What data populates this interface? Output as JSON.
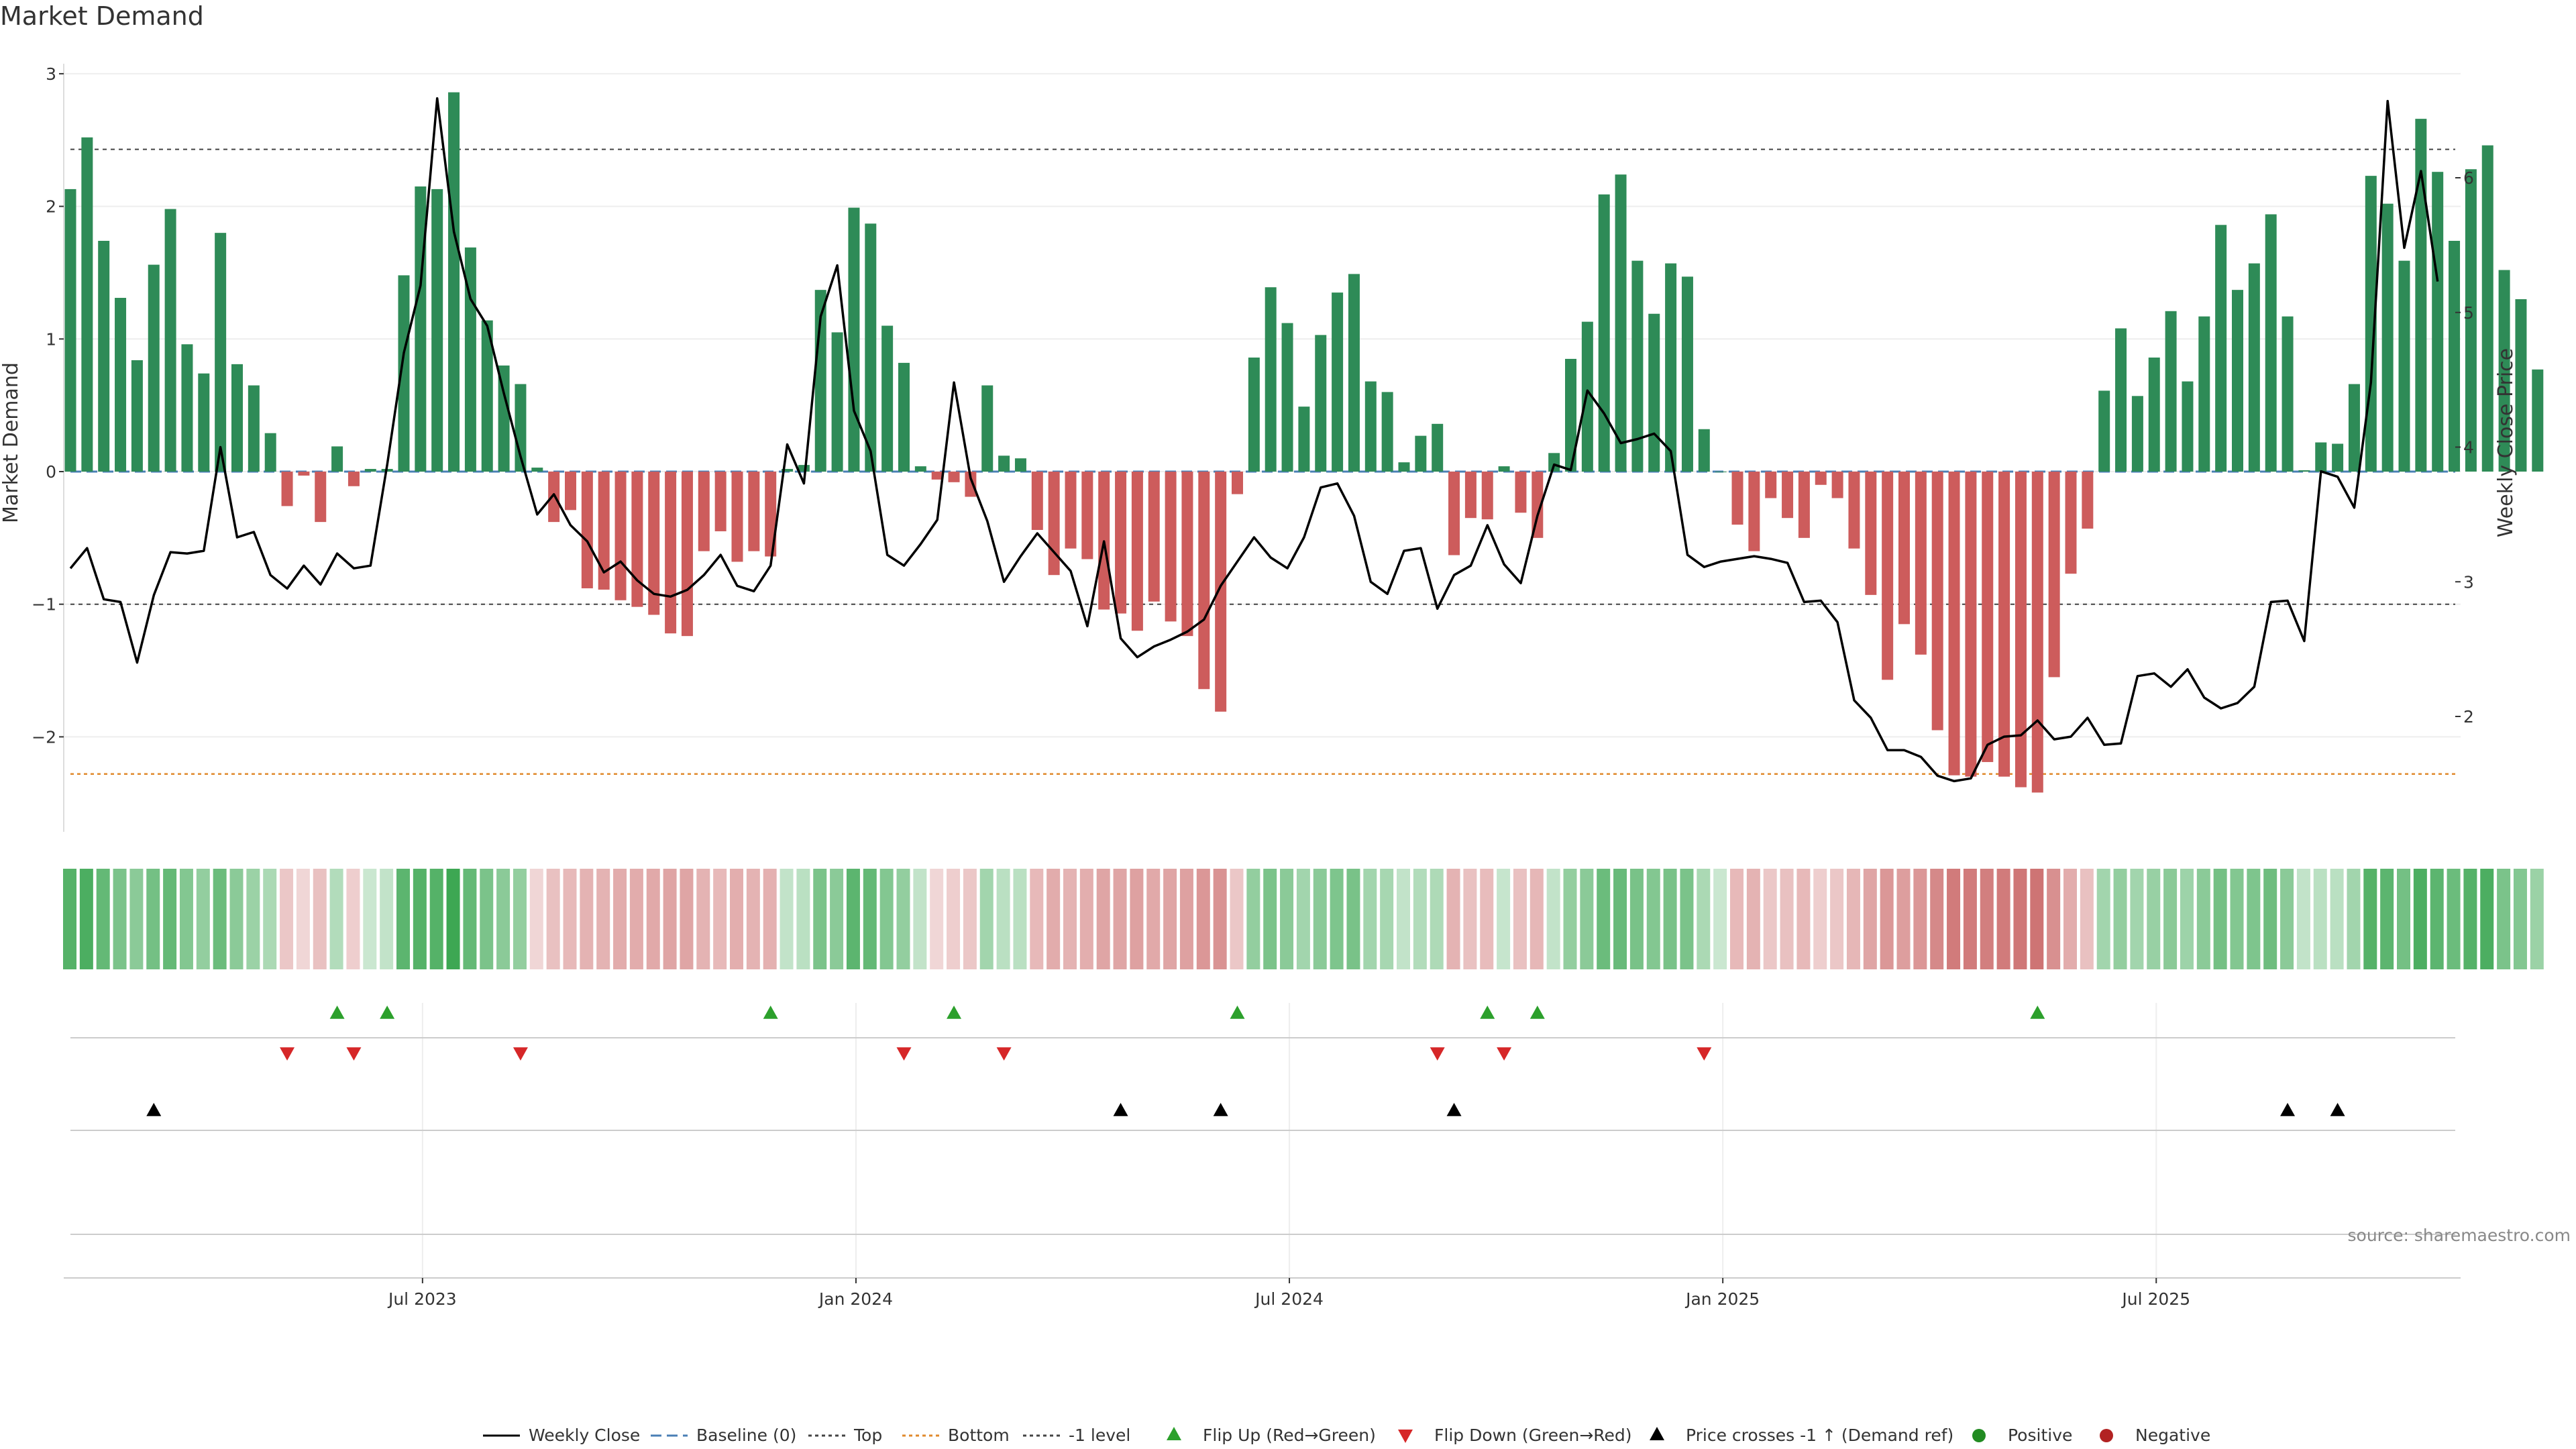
{
  "title": "Market Demand",
  "source": "source: sharemaestro.com",
  "chart_data": {
    "type": "bar",
    "title": "Market Demand",
    "ylabel": "Market Demand",
    "y2label": "Weekly Close Price",
    "ylim": [
      -2.7,
      3.0
    ],
    "y2lim": [
      1.35,
      6.9
    ],
    "yticks": [
      3,
      2,
      1,
      0,
      -1,
      -2
    ],
    "y2ticks": [
      6,
      5,
      4,
      3,
      2
    ],
    "x_tick_labels": [
      {
        "label": "Jul 2023",
        "week": 21
      },
      {
        "label": "Jan 2024",
        "week": 47
      },
      {
        "label": "Jul 2024",
        "week": 73
      },
      {
        "label": "Jan 2025",
        "week": 99
      },
      {
        "label": "Jul 2025",
        "week": 125
      }
    ],
    "reference_lines": {
      "top": 2.43,
      "bottom": -2.28,
      "minus_one": -1.0,
      "baseline": 0
    },
    "demand": [
      2.13,
      2.52,
      1.74,
      1.31,
      0.84,
      1.56,
      1.98,
      0.96,
      0.74,
      1.8,
      0.81,
      0.65,
      0.29,
      -0.26,
      -0.03,
      -0.38,
      0.19,
      -0.11,
      0.02,
      0.02,
      1.48,
      2.15,
      2.13,
      2.86,
      1.69,
      1.14,
      0.8,
      0.66,
      0.03,
      -0.38,
      -0.29,
      -0.88,
      -0.89,
      -0.97,
      -1.02,
      -1.08,
      -1.22,
      -1.24,
      -0.6,
      -0.45,
      -0.68,
      -0.6,
      -0.64,
      0.02,
      0.05,
      1.37,
      1.05,
      1.99,
      1.87,
      1.1,
      0.82,
      0.04,
      -0.06,
      -0.08,
      -0.19,
      0.65,
      0.12,
      0.1,
      -0.44,
      -0.78,
      -0.58,
      -0.66,
      -1.04,
      -1.07,
      -1.2,
      -0.98,
      -1.13,
      -1.24,
      -1.64,
      -1.81,
      -0.17,
      0.86,
      1.39,
      1.12,
      0.49,
      1.03,
      1.35,
      1.49,
      0.68,
      0.6,
      0.07,
      0.27,
      0.36,
      -0.63,
      -0.35,
      -0.36,
      0.04,
      -0.31,
      -0.5,
      0.14,
      0.85,
      1.13,
      2.09,
      2.24,
      1.59,
      1.19,
      1.57,
      1.47,
      0.32,
      0.0,
      -0.4,
      -0.6,
      -0.2,
      -0.35,
      -0.5,
      -0.1,
      -0.2,
      -0.58,
      -0.93,
      -1.57,
      -1.15,
      -1.38,
      -1.95,
      -2.29,
      -2.3,
      -2.19,
      -2.3,
      -2.38,
      -2.42,
      -1.55,
      -0.77,
      -0.43,
      0.61,
      1.08,
      0.57,
      0.86,
      1.21,
      0.68,
      1.17,
      1.86,
      1.37,
      1.57,
      1.94,
      1.17,
      0.01,
      0.22,
      0.21,
      0.66,
      2.23,
      2.02,
      1.59,
      2.66,
      2.26,
      1.74,
      2.28,
      2.46,
      1.52,
      1.3,
      0.77
    ],
    "weekly_close": [
      3.1,
      3.25,
      2.87,
      2.85,
      2.4,
      2.9,
      3.22,
      3.21,
      3.23,
      4.0,
      3.33,
      3.37,
      3.05,
      2.95,
      3.12,
      2.98,
      3.21,
      3.1,
      3.12,
      3.87,
      4.7,
      5.2,
      6.59,
      5.6,
      5.1,
      4.9,
      4.4,
      3.93,
      3.5,
      3.65,
      3.42,
      3.3,
      3.07,
      3.15,
      3.01,
      2.91,
      2.89,
      2.94,
      3.05,
      3.2,
      2.97,
      2.93,
      3.12,
      4.02,
      3.73,
      4.97,
      5.35,
      4.27,
      3.97,
      3.2,
      3.12,
      3.28,
      3.46,
      4.48,
      3.77,
      3.45,
      3.0,
      3.19,
      3.36,
      3.22,
      3.08,
      2.67,
      3.3,
      2.58,
      2.44,
      2.52,
      2.57,
      2.63,
      2.72,
      2.97,
      3.15,
      3.33,
      3.18,
      3.1,
      3.33,
      3.7,
      3.73,
      3.49,
      3.0,
      2.91,
      3.23,
      3.25,
      2.8,
      3.05,
      3.12,
      3.42,
      3.13,
      2.99,
      3.49,
      3.87,
      3.83,
      4.42,
      4.25,
      4.03,
      4.06,
      4.1,
      3.97,
      3.2,
      3.11,
      3.15,
      3.17,
      3.19,
      3.17,
      3.14,
      2.85,
      2.86,
      2.7,
      2.12,
      1.99,
      1.75,
      1.75,
      1.7,
      1.56,
      1.52,
      1.54,
      1.79,
      1.85,
      1.86,
      1.97,
      1.83,
      1.85,
      1.99,
      1.79,
      1.8,
      2.3,
      2.32,
      2.22,
      2.35,
      2.14,
      2.06,
      2.1,
      2.22,
      2.85,
      2.86,
      2.56,
      3.82,
      3.78,
      3.55,
      4.48,
      6.57,
      5.48,
      6.05,
      5.23
    ],
    "regime_strength": [
      0.85,
      0.9,
      0.75,
      0.6,
      0.5,
      0.65,
      0.75,
      0.55,
      0.45,
      0.7,
      0.5,
      0.4,
      0.3,
      -0.2,
      -0.1,
      -0.25,
      0.25,
      -0.15,
      0.1,
      0.15,
      0.8,
      0.85,
      0.85,
      1.0,
      0.75,
      0.6,
      0.5,
      0.45,
      -0.1,
      -0.25,
      -0.3,
      -0.35,
      -0.35,
      -0.4,
      -0.4,
      -0.42,
      -0.45,
      -0.45,
      -0.35,
      -0.3,
      -0.38,
      -0.35,
      -0.36,
      0.15,
      0.2,
      0.6,
      0.5,
      0.8,
      0.75,
      0.55,
      0.45,
      0.15,
      -0.1,
      -0.15,
      -0.2,
      0.35,
      0.2,
      0.2,
      -0.3,
      -0.4,
      -0.35,
      -0.38,
      -0.45,
      -0.45,
      -0.48,
      -0.42,
      -0.45,
      -0.48,
      -0.55,
      -0.58,
      -0.2,
      0.45,
      0.6,
      0.5,
      0.35,
      0.5,
      0.58,
      0.62,
      0.35,
      0.32,
      0.15,
      0.25,
      0.28,
      -0.35,
      -0.25,
      -0.28,
      0.12,
      -0.25,
      -0.32,
      0.15,
      0.45,
      0.5,
      0.7,
      0.72,
      0.62,
      0.55,
      0.62,
      0.6,
      0.3,
      0.1,
      -0.3,
      -0.35,
      -0.2,
      -0.25,
      -0.3,
      -0.15,
      -0.2,
      -0.32,
      -0.45,
      -0.55,
      -0.5,
      -0.55,
      -0.65,
      -0.75,
      -0.75,
      -0.72,
      -0.75,
      -0.78,
      -0.8,
      -0.6,
      -0.4,
      -0.25,
      0.35,
      0.45,
      0.35,
      0.42,
      0.5,
      0.38,
      0.5,
      0.65,
      0.55,
      0.58,
      0.68,
      0.5,
      0.15,
      0.2,
      0.2,
      0.35,
      0.85,
      0.8,
      0.65,
      0.9,
      0.8,
      0.7,
      0.85,
      0.9,
      0.6,
      0.55,
      0.4
    ],
    "flip_up_weeks": [
      16,
      19,
      42,
      53,
      70,
      85,
      88,
      118
    ],
    "flip_down_weeks": [
      13,
      17,
      27,
      50,
      56,
      82,
      86,
      98
    ],
    "price_cross_weeks": [
      5,
      63,
      69,
      83,
      133,
      136
    ],
    "legend": [
      "Weekly Close",
      "Baseline (0)",
      "Top",
      "Bottom",
      "-1 level",
      "Flip Up (Red→Green)",
      "Flip Down (Green→Red)",
      "Price crosses -1 ↑ (Demand ref)",
      "Positive",
      "Negative"
    ],
    "colors": {
      "positive": "#2e8b57",
      "negative": "#cd5c5c",
      "price": "#000000",
      "baseline": "#4a7fb5",
      "top": "#444444",
      "bottom": "#e08a2c",
      "flip_up": "#2ca02c",
      "flip_down": "#d62728",
      "cross": "#000000",
      "legend_positive": "#228b22",
      "legend_negative": "#b22222"
    }
  }
}
